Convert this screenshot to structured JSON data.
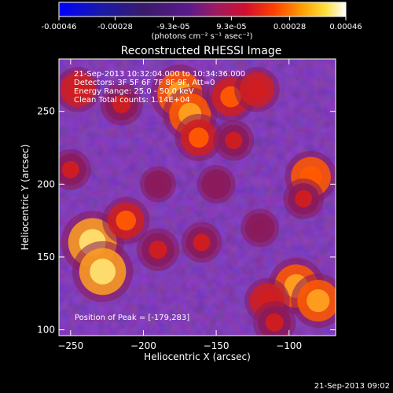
{
  "chart_data": {
    "type": "heatmap",
    "title": "Reconstructed RHESSI Image",
    "xlabel": "Heliocentric X (arcsec)",
    "ylabel": "Heliocentric Y (arcsec)",
    "xlim": [
      -258,
      -68
    ],
    "ylim": [
      96,
      286
    ],
    "x_ticks": [
      -250,
      -200,
      -150,
      -100
    ],
    "y_ticks": [
      100,
      150,
      200,
      250
    ],
    "colorbar": {
      "range": [
        -0.00046,
        0.00046
      ],
      "tick_values": [
        -0.00046,
        -0.00028,
        -9.3e-05,
        9.3e-05,
        0.00028,
        0.00046
      ],
      "tick_labels": [
        "-0.00046",
        "-0.00028",
        "-9.3e-05",
        "9.3e-05",
        "0.00028",
        "0.00046"
      ],
      "unit_label": "(photons cm⁻² s⁻¹ asec⁻²)"
    },
    "info_lines": [
      "21-Sep-2013 10:32:04.000 to 10:34:36.000",
      "Detectors: 3F 5F 6F 7F 8F 9F, Att=0",
      "Energy Range: 25.0 - 50.0 keV",
      "Clean      Total counts: 1.14E+04"
    ],
    "peak_label": "Position of Peak = [-179,283]",
    "peak": {
      "x": -179,
      "y": 283
    },
    "grid": false,
    "bright_regions": [
      {
        "x": -235,
        "y": 160,
        "level": 0.95
      },
      {
        "x": -228,
        "y": 140,
        "level": 0.9
      },
      {
        "x": -212,
        "y": 175,
        "level": 0.6
      },
      {
        "x": -245,
        "y": 265,
        "level": 0.55
      },
      {
        "x": -215,
        "y": 255,
        "level": 0.5
      },
      {
        "x": -175,
        "y": 262,
        "level": 0.85
      },
      {
        "x": -168,
        "y": 248,
        "level": 0.75
      },
      {
        "x": -162,
        "y": 232,
        "level": 0.6
      },
      {
        "x": -140,
        "y": 260,
        "level": 0.65
      },
      {
        "x": -138,
        "y": 230,
        "level": 0.45
      },
      {
        "x": -150,
        "y": 200,
        "level": 0.4
      },
      {
        "x": -190,
        "y": 155,
        "level": 0.5
      },
      {
        "x": -160,
        "y": 160,
        "level": 0.45
      },
      {
        "x": -122,
        "y": 265,
        "level": 0.55
      },
      {
        "x": -85,
        "y": 205,
        "level": 0.7
      },
      {
        "x": -90,
        "y": 190,
        "level": 0.45
      },
      {
        "x": -120,
        "y": 170,
        "level": 0.4
      },
      {
        "x": -95,
        "y": 130,
        "level": 0.8
      },
      {
        "x": -80,
        "y": 120,
        "level": 0.75
      },
      {
        "x": -115,
        "y": 120,
        "level": 0.55
      },
      {
        "x": -110,
        "y": 105,
        "level": 0.5
      },
      {
        "x": -190,
        "y": 200,
        "level": 0.35
      },
      {
        "x": -250,
        "y": 210,
        "level": 0.45
      }
    ]
  },
  "footer": {
    "timestamp": "21-Sep-2013 09:02"
  }
}
